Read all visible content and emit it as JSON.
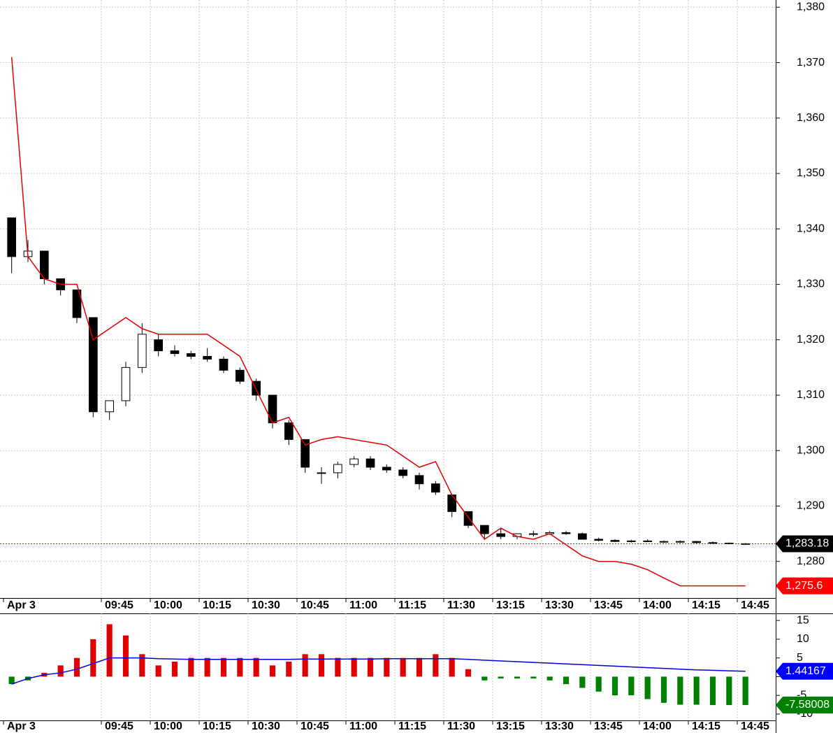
{
  "chart_data": [
    {
      "type": "candlestick",
      "categories": [
        "Apr 3",
        null,
        null,
        null,
        null,
        null,
        "09:45",
        null,
        null,
        "10:00",
        null,
        null,
        "10:15",
        null,
        null,
        "10:30",
        null,
        null,
        "10:45",
        null,
        null,
        "11:00",
        null,
        null,
        "11:15",
        null,
        null,
        "11:30",
        null,
        null,
        "13:15",
        null,
        null,
        "13:30",
        null,
        null,
        "13:45",
        null,
        null,
        "14:00",
        null,
        null,
        "14:15",
        null,
        null,
        "14:45"
      ],
      "open": [
        1342,
        1335,
        1336,
        1331,
        1329,
        1324,
        1307,
        1309,
        1315,
        1320,
        1318,
        1317.5,
        1317,
        1316.5,
        1314.5,
        1312.5,
        1310,
        1305,
        1302,
        1296,
        1296,
        1297.5,
        1298.5,
        1297,
        1296.5,
        1295.5,
        1294,
        1292,
        1289,
        1286.5,
        1285,
        1284.5,
        1285,
        1285,
        1285.2,
        1285,
        1284,
        1283.8,
        1283.6,
        1283.7,
        1283.6,
        1283.5,
        1283.6,
        1283.4,
        1283.3,
        1283.2
      ],
      "high": [
        1342,
        1338,
        1336,
        1331,
        1329,
        1324,
        1309,
        1316,
        1323,
        1321,
        1319,
        1318,
        1318.5,
        1317,
        1315,
        1313,
        1310,
        1305.5,
        1302,
        1297,
        1298,
        1299,
        1299,
        1297.5,
        1297,
        1296,
        1294.5,
        1292,
        1289,
        1286.5,
        1286,
        1285,
        1285.5,
        1285.5,
        1285.5,
        1285.2,
        1284.3,
        1284,
        1283.9,
        1284,
        1283.8,
        1283.8,
        1283.7,
        1283.6,
        1283.4,
        1283.3
      ],
      "low": [
        1332,
        1334,
        1330,
        1328,
        1323,
        1306,
        1305.5,
        1308,
        1314,
        1317,
        1317,
        1316.5,
        1316,
        1314,
        1312,
        1309,
        1304,
        1301,
        1296,
        1294,
        1295,
        1297,
        1296.5,
        1296,
        1295,
        1293,
        1292,
        1288,
        1286,
        1284,
        1284,
        1284,
        1284.5,
        1284.8,
        1284.8,
        1284,
        1283.6,
        1283.5,
        1283.4,
        1283.5,
        1283.3,
        1283.3,
        1283.2,
        1283.1,
        1283.1,
        1283.1
      ],
      "close": [
        1335,
        1336,
        1331,
        1329,
        1324,
        1307,
        1309,
        1315,
        1321,
        1318,
        1317.5,
        1317,
        1316.5,
        1314.5,
        1312.5,
        1310,
        1305,
        1302,
        1297,
        1296,
        1297.5,
        1298.5,
        1297,
        1296.5,
        1295.5,
        1294,
        1292.5,
        1289,
        1286.5,
        1285,
        1284.5,
        1285,
        1285,
        1285.2,
        1285,
        1284,
        1283.8,
        1283.6,
        1283.7,
        1283.6,
        1283.5,
        1283.6,
        1283.4,
        1283.3,
        1283.2,
        1283.18
      ],
      "color": "#000000",
      "overlay": {
        "color": "#e00000",
        "values": [
          1371,
          1335,
          1331,
          1330,
          1330,
          1320,
          1322,
          1324,
          1322,
          1321,
          1321,
          1321,
          1321,
          1319,
          1317,
          1311,
          1305,
          1306,
          1301,
          1302,
          1302.5,
          1302,
          1301.5,
          1301,
          1299,
          1297,
          1298,
          1292,
          1288,
          1284,
          1286,
          1284.5,
          1284,
          1285,
          1283,
          1281,
          1280,
          1280,
          1279.5,
          1278.5,
          1277,
          1275.6,
          1275.6,
          1275.6,
          1275.6,
          1275.6
        ]
      },
      "ylim": [
        1273.4,
        1381.3
      ],
      "yticks": [
        {
          "value": 1280,
          "label": "1,280"
        },
        {
          "value": 1290,
          "label": "1,290"
        },
        {
          "value": 1300,
          "label": "1,300"
        },
        {
          "value": 1310,
          "label": "1,310"
        },
        {
          "value": 1320,
          "label": "1,320"
        },
        {
          "value": 1330,
          "label": "1,330"
        },
        {
          "value": 1340,
          "label": "1,340"
        },
        {
          "value": 1350,
          "label": "1,350"
        },
        {
          "value": 1360,
          "label": "1,360"
        },
        {
          "value": 1370,
          "label": "1,370"
        },
        {
          "value": 1380,
          "label": "1,380"
        }
      ],
      "grid": true,
      "last_labels": [
        {
          "value": 1283.18,
          "label": "1,283.18",
          "color": "#000000"
        },
        {
          "value": 1275.6,
          "label": "1,275.6",
          "color": "#ff0000"
        }
      ]
    },
    {
      "type": "bar",
      "categories": [
        "Apr 3",
        null,
        null,
        null,
        null,
        null,
        "09:45",
        null,
        null,
        "10:00",
        null,
        null,
        "10:15",
        null,
        null,
        "10:30",
        null,
        null,
        "10:45",
        null,
        null,
        "11:00",
        null,
        null,
        "11:15",
        null,
        null,
        "11:30",
        null,
        null,
        "13:15",
        null,
        null,
        "13:30",
        null,
        null,
        "13:45",
        null,
        null,
        "14:00",
        null,
        null,
        "14:15",
        null,
        null,
        "14:45"
      ],
      "values": [
        -2,
        -1,
        1,
        3,
        5,
        10,
        14,
        11,
        6,
        3,
        4,
        5,
        5,
        5,
        5,
        5,
        3,
        4,
        6,
        6,
        5,
        5,
        5,
        5,
        5,
        5,
        6,
        5,
        2,
        -1,
        -0.5,
        -0.5,
        -0.5,
        -1,
        -2,
        -3,
        -4,
        -5,
        -5,
        -6,
        -7,
        -7.5,
        -7.5,
        -7.6,
        -7.6,
        -7.58008
      ],
      "color_up": "#e00000",
      "color_down": "#008000",
      "overlay": {
        "color": "#0000e0",
        "values": [
          -2,
          -0.5,
          0.5,
          1,
          2,
          3.5,
          5,
          5,
          5,
          4.8,
          4.7,
          4.6,
          4.6,
          4.6,
          4.6,
          4.6,
          4.6,
          4.6,
          4.7,
          4.7,
          4.7,
          4.7,
          4.7,
          4.8,
          4.8,
          4.8,
          4.8,
          4.8,
          4.6,
          4.4,
          4.2,
          4,
          3.8,
          3.6,
          3.4,
          3.2,
          3,
          2.8,
          2.6,
          2.4,
          2.2,
          2,
          1.8,
          1.7,
          1.55,
          1.44167
        ]
      },
      "ylim": [
        -11.7,
        16.9
      ],
      "yticks": [
        -10,
        -5,
        0,
        5,
        10,
        15
      ],
      "grid": true,
      "last_labels": [
        {
          "value": 1.44167,
          "label": "1.44167",
          "color": "#0000ff"
        },
        {
          "value": -7.58008,
          "label": "-7.58008",
          "color": "#008000"
        }
      ]
    }
  ]
}
